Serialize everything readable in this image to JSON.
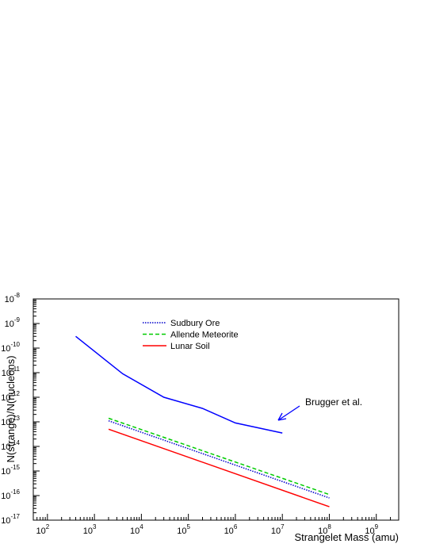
{
  "chart_data": {
    "type": "line",
    "title": "",
    "xlabel": "Strangelet Mass (amu)",
    "ylabel": "N(strange)/N(nucleons)",
    "xscale": "log",
    "yscale": "log",
    "xlim": [
      50,
      3000000000
    ],
    "ylim": [
      1e-17,
      1e-08
    ],
    "x_tick_labels": [
      {
        "base": "10",
        "exp": "2"
      },
      {
        "base": "10",
        "exp": "3"
      },
      {
        "base": "10",
        "exp": "4"
      },
      {
        "base": "10",
        "exp": "5"
      },
      {
        "base": "10",
        "exp": "6"
      },
      {
        "base": "10",
        "exp": "7"
      },
      {
        "base": "10",
        "exp": "8"
      },
      {
        "base": "10",
        "exp": "9"
      }
    ],
    "y_tick_labels": [
      {
        "base": "10",
        "exp": "-17"
      },
      {
        "base": "10",
        "exp": "-16"
      },
      {
        "base": "10",
        "exp": "-15"
      },
      {
        "base": "10",
        "exp": "-14"
      },
      {
        "base": "10",
        "exp": "-13"
      },
      {
        "base": "10",
        "exp": "-12"
      },
      {
        "base": "10",
        "exp": "-11"
      },
      {
        "base": "10",
        "exp": "-10"
      },
      {
        "base": "10",
        "exp": "-9"
      },
      {
        "base": "10",
        "exp": "-8"
      }
    ],
    "grid": false,
    "legend_position": "top-left",
    "series": [
      {
        "name": "Sudbury Ore",
        "color": "#0000cc",
        "style": "dotted",
        "x": [
          2000,
          100000000
        ],
        "y": [
          1.1e-13,
          8e-17
        ]
      },
      {
        "name": "Allende Meteorite",
        "color": "#00cc00",
        "style": "dashed",
        "x": [
          2000,
          100000000
        ],
        "y": [
          1.4e-13,
          1.1e-16
        ]
      },
      {
        "name": "Lunar Soil",
        "color": "#ff0000",
        "style": "solid",
        "x": [
          2000,
          100000000
        ],
        "y": [
          5e-14,
          3.5e-17
        ]
      },
      {
        "name": "",
        "color": "#0000ff",
        "style": "solid",
        "x": [
          400,
          4000,
          30000,
          200000,
          1000000,
          10000000
        ],
        "y": [
          3e-10,
          9e-12,
          1e-12,
          3.5e-13,
          9e-14,
          3.5e-14
        ]
      }
    ],
    "annotations": [
      {
        "text": "Brugger et al."
      }
    ]
  }
}
